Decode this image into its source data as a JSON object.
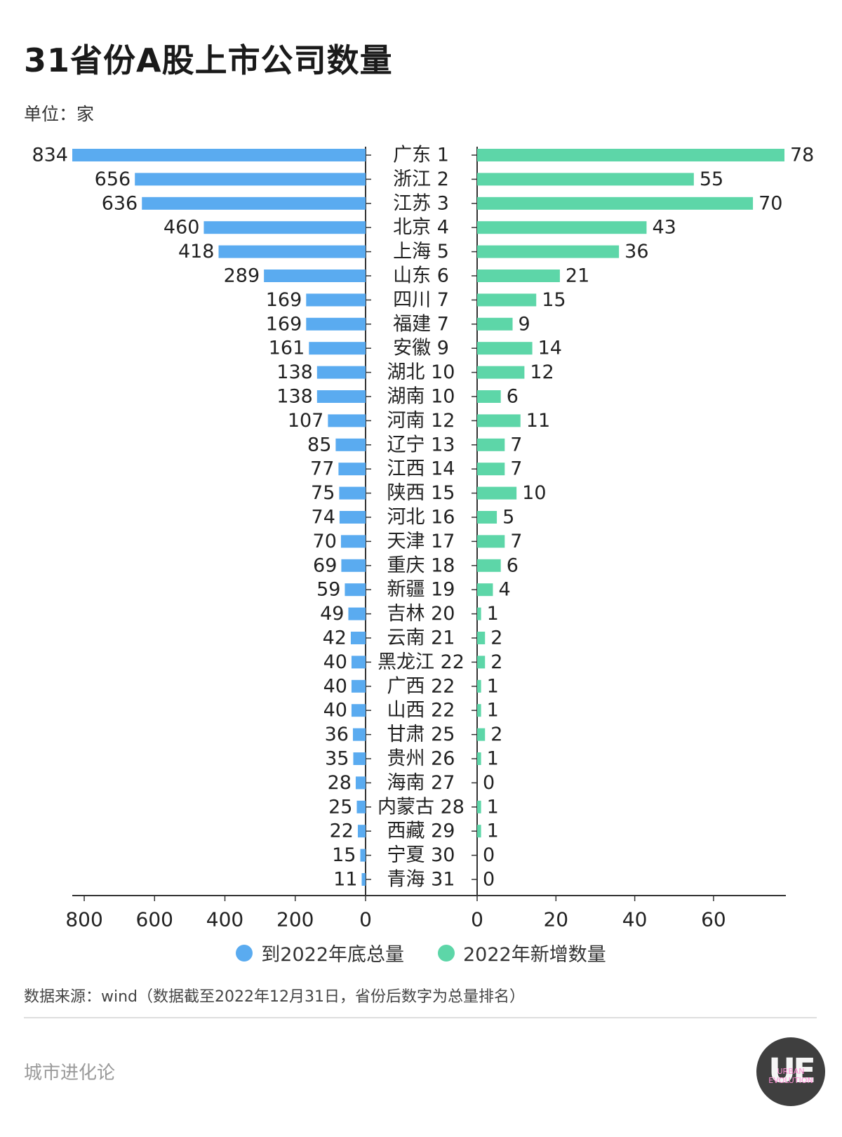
{
  "header": {
    "title": "31省份A股上市公司数量",
    "unit": "单位：家"
  },
  "legend": {
    "total_label": "到2022年底总量",
    "new_label": "2022年新增数量"
  },
  "footer": {
    "source": "数据来源：wind（数据截至2022年12月31日，省份后数字为总量排名）",
    "brand": "城市进化论",
    "logo_text": "UE",
    "logo_sub_1": "URBAN",
    "logo_sub_2": "EVOLUTION"
  },
  "colors": {
    "total": "#5aabf0",
    "new": "#5dd6a8",
    "axis": "#333333"
  },
  "chart_data": {
    "type": "bar",
    "orientation": "horizontal-butterfly",
    "categories": [
      "广东 1",
      "浙江 2",
      "江苏 3",
      "北京 4",
      "上海 5",
      "山东 6",
      "四川 7",
      "福建 7",
      "安徽 9",
      "湖北 10",
      "湖南 10",
      "河南 12",
      "辽宁 13",
      "江西 14",
      "陕西 15",
      "河北 16",
      "天津 17",
      "重庆 18",
      "新疆 19",
      "吉林 20",
      "云南 21",
      "黑龙江 22",
      "广西 22",
      "山西 22",
      "甘肃 25",
      "贵州 26",
      "海南 27",
      "内蒙古 28",
      "西藏 29",
      "宁夏 30",
      "青海 31"
    ],
    "series": [
      {
        "name": "到2022年底总量",
        "values": [
          834,
          656,
          636,
          460,
          418,
          289,
          169,
          169,
          161,
          138,
          138,
          107,
          85,
          77,
          75,
          74,
          70,
          69,
          59,
          49,
          42,
          40,
          40,
          40,
          36,
          35,
          28,
          25,
          22,
          15,
          11
        ],
        "xlim": [
          0,
          834
        ],
        "ticks": [
          800,
          600,
          400,
          200,
          0
        ]
      },
      {
        "name": "2022年新增数量",
        "values": [
          78,
          55,
          70,
          43,
          36,
          21,
          15,
          9,
          14,
          12,
          6,
          11,
          7,
          7,
          10,
          5,
          7,
          6,
          4,
          1,
          2,
          2,
          1,
          1,
          2,
          1,
          0,
          1,
          1,
          0,
          0
        ],
        "xlim": [
          0,
          78
        ],
        "ticks": [
          0,
          20,
          40,
          60
        ]
      }
    ]
  }
}
